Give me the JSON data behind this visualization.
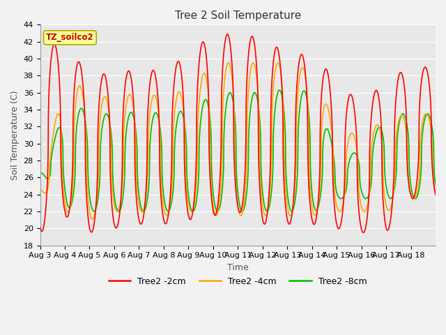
{
  "title": "Tree 2 Soil Temperature",
  "ylabel": "Soil Temperature (C)",
  "xlabel": "Time",
  "annotation": "TZ_soilco2",
  "ylim": [
    18,
    44
  ],
  "yticks": [
    18,
    20,
    22,
    24,
    26,
    28,
    30,
    32,
    34,
    36,
    38,
    40,
    42,
    44
  ],
  "xtick_labels": [
    "Aug 3",
    "Aug 4",
    "Aug 5",
    "Aug 6",
    "Aug 7",
    "Aug 8",
    "Aug 9",
    "Aug 10",
    "Aug 11",
    "Aug 12",
    "Aug 13",
    "Aug 14",
    "Aug 15",
    "Aug 16",
    "Aug 17",
    "Aug 18"
  ],
  "color_2cm": "#FF0000",
  "color_4cm": "#FFA500",
  "color_8cm": "#00BB00",
  "bg_color": "#E8E8E8",
  "grid_color": "#FFFFFF",
  "legend_labels": [
    "Tree2 -2cm",
    "Tree2 -4cm",
    "Tree2 -8cm"
  ],
  "title_fontsize": 11,
  "axis_label_fontsize": 9,
  "tick_fontsize": 8,
  "linewidth": 1.2
}
